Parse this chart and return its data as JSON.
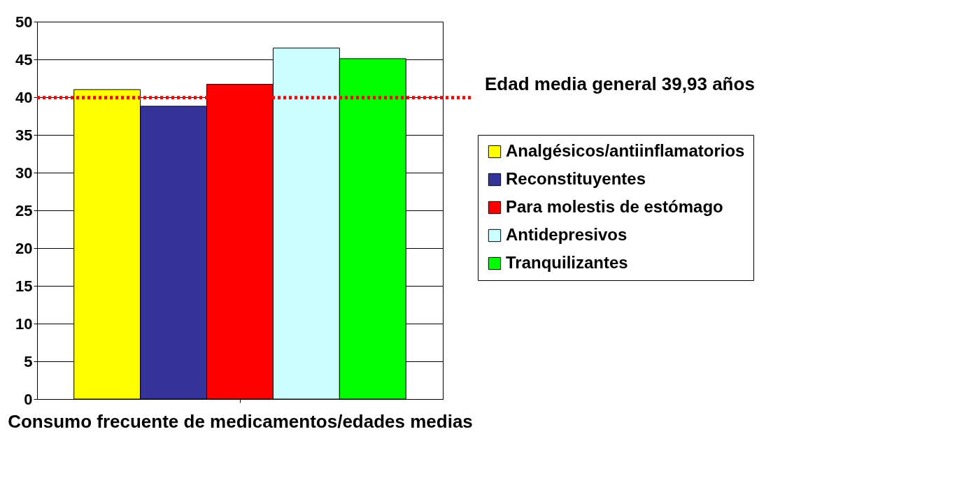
{
  "chart_data": {
    "type": "bar",
    "xlabel": "Consumo frecuente de medicamentos/edades medias",
    "categories": [
      null
    ],
    "series": [
      {
        "name": "Analgésicos/antiinflamatorios",
        "color": "#ffff00",
        "values": [
          41
        ]
      },
      {
        "name": "Reconstituyentes",
        "color": "#333399",
        "values": [
          38.8
        ]
      },
      {
        "name": "Para molestis de estómago",
        "color": "#ff0000",
        "values": [
          41.7
        ]
      },
      {
        "name": "Antidepresivos",
        "color": "#ccffff",
        "values": [
          46.5
        ]
      },
      {
        "name": "Tranquilizantes",
        "color": "#00ff00",
        "values": [
          45.1
        ]
      }
    ],
    "ylim": [
      0,
      50
    ],
    "yticks": [
      0,
      5,
      10,
      15,
      20,
      25,
      30,
      35,
      40,
      45,
      50
    ],
    "grid": "y",
    "legend": "right",
    "tick_labels": "y",
    "ref_lines": [
      {
        "axis": "y",
        "value": 39.93,
        "label": "Edad media general 39,93 años",
        "color": "#ff0000",
        "line_style": "dotted"
      }
    ]
  }
}
